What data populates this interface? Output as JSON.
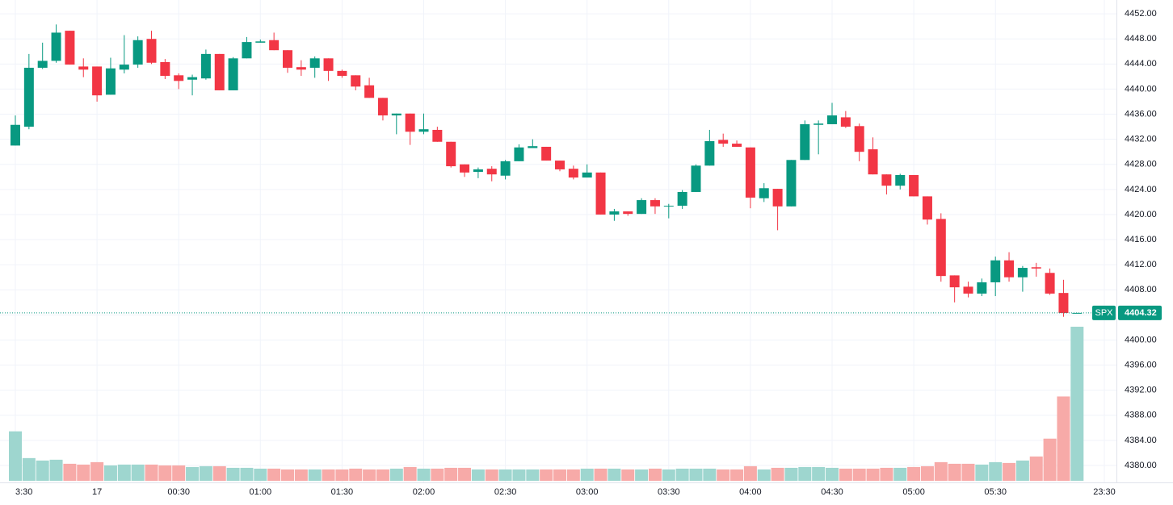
{
  "chart_data": {
    "type": "candlestick",
    "categories": [
      "3:30",
      null,
      null,
      null,
      null,
      null,
      "17",
      null,
      null,
      null,
      null,
      null,
      "00:30",
      null,
      null,
      null,
      null,
      null,
      "01:00",
      null,
      null,
      null,
      null,
      null,
      "01:30",
      null,
      null,
      null,
      null,
      null,
      "02:00",
      null,
      null,
      null,
      null,
      null,
      "02:30",
      null,
      null,
      null,
      null,
      null,
      "03:00",
      null,
      null,
      null,
      null,
      null,
      "03:30",
      null,
      null,
      null,
      null,
      null,
      "04:00",
      null,
      null,
      null,
      null,
      null,
      "04:30",
      null,
      null,
      null,
      null,
      null,
      "05:00",
      null,
      null,
      null,
      null,
      null,
      "05:30",
      null,
      null,
      null,
      null,
      null,
      null,
      null,
      "23:30"
    ],
    "open": [
      4431.0,
      4434.0,
      4443.4,
      4444.5,
      4449.3,
      4443.6,
      4443.6,
      4439.1,
      4443.1,
      4443.9,
      4448.0,
      4444.3,
      4442.2,
      4441.5,
      4441.7,
      4445.6,
      4439.8,
      4444.9,
      4447.4,
      4447.8,
      4446.2,
      4443.5,
      4443.4,
      4444.9,
      4442.9,
      4442.2,
      4440.6,
      4438.6,
      4435.8,
      4436.1,
      4433.2,
      4433.5,
      4431.6,
      4428.0,
      4426.8,
      4427.3,
      4426.2,
      4428.5,
      4430.6,
      4430.8,
      4428.6,
      4427.3,
      4425.9,
      4426.7,
      4420.0,
      4420.5,
      4420.1,
      4422.3,
      4421.3,
      4421.4,
      4423.6,
      4427.8,
      4431.9,
      4431.3,
      4430.7,
      4422.6,
      4424.1,
      4421.3,
      4428.7,
      4434.3,
      4434.4,
      4435.5,
      4434.1,
      4430.4,
      4426.4,
      4424.6,
      4426.3,
      4422.9,
      4419.3,
      4410.3,
      4408.5,
      4407.4,
      4409.2,
      4412.7,
      4410.0,
      4411.6,
      4410.7,
      4407.5,
      4404.3,
      null,
      null
    ],
    "high": [
      4435.8,
      4445.6,
      4447.4,
      4450.3,
      4449.3,
      4444.9,
      4443.6,
      4445.0,
      4448.6,
      4448.4,
      4449.3,
      4444.8,
      4442.5,
      4442.3,
      4446.3,
      4445.6,
      4445.1,
      4448.3,
      4447.9,
      4449.0,
      4446.2,
      4444.6,
      4445.2,
      4444.9,
      4443.1,
      4442.2,
      4441.8,
      4438.6,
      4436.1,
      4436.1,
      4436.1,
      4434.0,
      4431.6,
      4428.0,
      4427.5,
      4427.7,
      4428.7,
      4431.2,
      4432.0,
      4430.8,
      4428.6,
      4427.8,
      4428.0,
      4426.7,
      4420.9,
      4420.5,
      4422.6,
      4422.6,
      4421.7,
      4423.9,
      4428.0,
      4433.5,
      4432.9,
      4431.8,
      4430.7,
      4425.0,
      4424.1,
      4428.7,
      4435.0,
      4435.0,
      4437.8,
      4436.5,
      4434.5,
      4432.3,
      4426.4,
      4426.5,
      4426.3,
      4422.9,
      4420.2,
      4410.3,
      4409.3,
      4409.8,
      4413.3,
      4414.0,
      4411.8,
      4412.3,
      4411.4,
      4409.6,
      4404.32,
      null,
      null
    ],
    "low": [
      4431.0,
      4433.6,
      4443.2,
      4444.2,
      4443.9,
      4441.9,
      4438.0,
      4439.1,
      4442.5,
      4443.4,
      4444.0,
      4441.6,
      4440.0,
      4439.0,
      4441.5,
      4439.8,
      4439.8,
      4444.9,
      4447.4,
      4446.2,
      4442.6,
      4442.1,
      4441.8,
      4441.3,
      4441.8,
      4439.8,
      4438.6,
      4435.0,
      4432.8,
      4431.1,
      4432.8,
      4431.6,
      4427.5,
      4426.0,
      4425.8,
      4425.3,
      4425.6,
      4428.5,
      4430.6,
      4428.6,
      4426.9,
      4425.6,
      4425.9,
      4420.0,
      4419.0,
      4419.8,
      4420.1,
      4420.1,
      4419.4,
      4420.9,
      4423.6,
      4427.8,
      4430.8,
      4430.8,
      4421.0,
      4422.0,
      4417.5,
      4421.3,
      4428.7,
      4429.6,
      4434.4,
      4433.8,
      4428.5,
      4426.4,
      4423.2,
      4424.0,
      4422.9,
      4418.4,
      4409.3,
      4406.0,
      4406.8,
      4407.0,
      4407.0,
      4409.3,
      4407.7,
      4410.1,
      4407.2,
      4403.7,
      4404.3,
      null,
      null
    ],
    "close": [
      4434.3,
      4443.4,
      4444.5,
      4449.0,
      4443.9,
      4443.1,
      4439.0,
      4443.3,
      4443.9,
      4447.8,
      4444.2,
      4442.1,
      4441.3,
      4441.9,
      4445.6,
      4439.8,
      4444.9,
      4447.5,
      4447.6,
      4446.2,
      4443.4,
      4443.1,
      4444.9,
      4442.9,
      4442.1,
      4440.4,
      4438.6,
      4435.8,
      4436.1,
      4433.2,
      4433.6,
      4431.6,
      4427.7,
      4426.7,
      4427.2,
      4426.4,
      4428.5,
      4430.7,
      4430.9,
      4428.6,
      4427.2,
      4425.9,
      4426.7,
      4420.0,
      4420.5,
      4420.1,
      4422.3,
      4421.3,
      4421.4,
      4423.6,
      4427.8,
      4431.7,
      4431.3,
      4430.8,
      4422.7,
      4424.2,
      4421.3,
      4428.7,
      4434.4,
      4434.5,
      4435.8,
      4434.0,
      4430.0,
      4426.4,
      4424.6,
      4426.3,
      4422.9,
      4419.2,
      4410.2,
      4408.4,
      4407.4,
      4409.2,
      4412.7,
      4410.0,
      4411.5,
      4411.4,
      4407.4,
      4404.3,
      4404.32,
      null,
      null
    ],
    "volume": [
      61,
      28,
      25,
      26,
      21,
      20,
      23,
      19,
      20,
      20,
      20,
      19,
      19,
      17,
      18,
      18,
      16,
      16,
      15,
      15,
      14,
      14,
      14,
      14,
      14,
      15,
      14,
      14,
      15,
      17,
      15,
      15,
      16,
      16,
      14,
      14,
      14,
      14,
      14,
      14,
      14,
      14,
      15,
      15,
      15,
      14,
      14,
      15,
      14,
      15,
      15,
      15,
      14,
      14,
      18,
      14,
      16,
      16,
      17,
      17,
      16,
      15,
      15,
      15,
      16,
      16,
      17,
      18,
      23,
      21,
      21,
      20,
      23,
      22,
      25,
      30,
      52,
      104,
      190,
      null,
      null
    ],
    "up_color": "#089981",
    "down_color": "#f23645",
    "up_volume_color": "#9ed6cf",
    "down_volume_color": "#f7aaa8",
    "ylim": [
      4377.3,
      4454.2
    ],
    "volume_lim": [
      0,
      190
    ],
    "yticks": [
      {
        "value": 4380,
        "label": "4380.00"
      },
      {
        "value": 4384,
        "label": "4384.00"
      },
      {
        "value": 4388,
        "label": "4388.00"
      },
      {
        "value": 4392,
        "label": "4392.00"
      },
      {
        "value": 4396,
        "label": "4396.00"
      },
      {
        "value": 4400,
        "label": "4400.00"
      },
      {
        "value": 4404,
        "label": "4404.00"
      },
      {
        "value": 4408,
        "label": "4408.00"
      },
      {
        "value": 4412,
        "label": "4412.00"
      },
      {
        "value": 4416,
        "label": "4416.00"
      },
      {
        "value": 4420,
        "label": "4420.00"
      },
      {
        "value": 4424,
        "label": "4424.00"
      },
      {
        "value": 4428,
        "label": "4428.00"
      },
      {
        "value": 4432,
        "label": "4432.00"
      },
      {
        "value": 4436,
        "label": "4436.00"
      },
      {
        "value": 4440,
        "label": "4440.00"
      },
      {
        "value": 4444,
        "label": "4444.00"
      },
      {
        "value": 4448,
        "label": "4448.00"
      },
      {
        "value": 4452,
        "label": "4452.00"
      }
    ],
    "grid": true,
    "last_price": {
      "symbol": "SPX",
      "value": 4404.32,
      "label": "4404.32"
    }
  }
}
